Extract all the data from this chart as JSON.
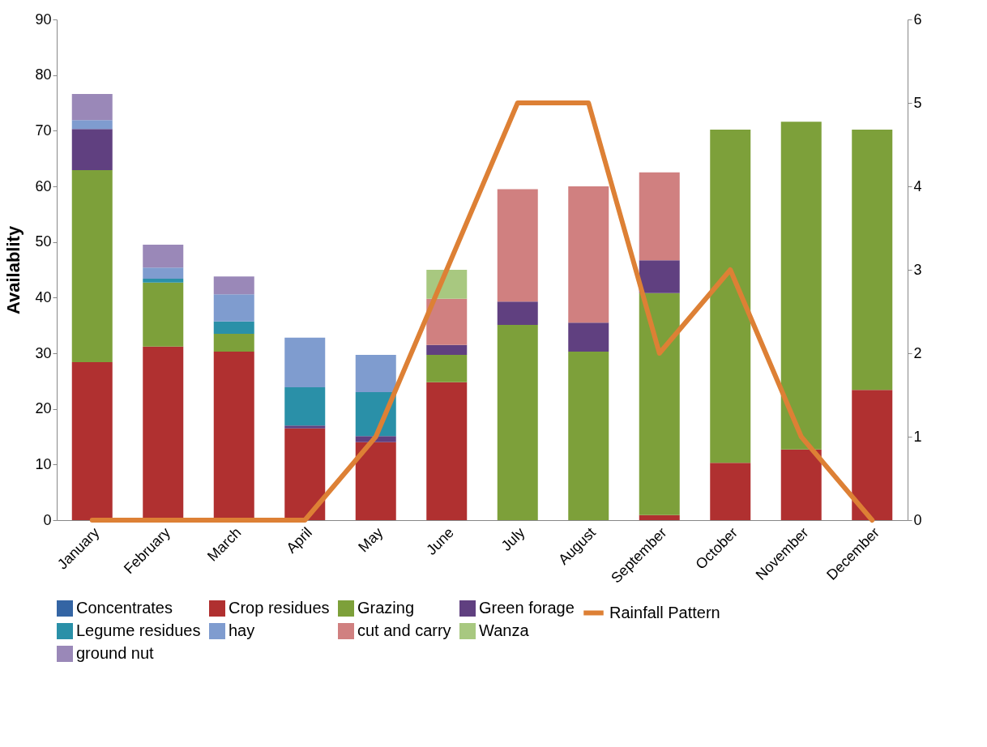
{
  "chart_data": {
    "type": "bar",
    "stacked": true,
    "ylabel": "Availablity",
    "categories": [
      "January",
      "February",
      "March",
      "April",
      "May",
      "June",
      "July",
      "August",
      "September",
      "October",
      "November",
      "December"
    ],
    "ylim": [
      0,
      90
    ],
    "yticks": [
      0,
      10,
      20,
      30,
      40,
      50,
      60,
      70,
      80,
      90
    ],
    "y2lim": [
      0,
      6
    ],
    "y2ticks": [
      0,
      1,
      2,
      3,
      4,
      5,
      6
    ],
    "legend": "bottom",
    "grid": false,
    "series": [
      {
        "name": "Concentrates",
        "color": "#3465a4",
        "values": [
          0,
          0,
          0,
          0,
          0,
          0,
          0,
          0,
          0,
          0,
          0,
          0
        ]
      },
      {
        "name": "Crop residues",
        "color": "#b03030",
        "values": [
          28.4,
          31.2,
          30.3,
          16.5,
          14,
          24.8,
          0,
          0,
          0.9,
          10.3,
          12.7,
          23.4
        ]
      },
      {
        "name": "Grazing",
        "color": "#7da03a",
        "values": [
          34.5,
          11.5,
          3.2,
          0,
          0,
          4.9,
          35.1,
          30.3,
          39.9,
          59.9,
          58.9,
          46.8
        ]
      },
      {
        "name": "Green forage",
        "color": "#604080",
        "values": [
          7.4,
          0,
          0,
          0.5,
          1.1,
          1.8,
          4.2,
          5.2,
          5.9,
          0,
          0,
          0
        ]
      },
      {
        "name": "Legume residues",
        "color": "#2a90a8",
        "values": [
          0,
          0.7,
          2.2,
          6.9,
          7.9,
          0,
          0,
          0,
          0,
          0,
          0,
          0
        ]
      },
      {
        "name": "hay",
        "color": "#7f9ccf",
        "values": [
          1.6,
          2,
          4.9,
          8.9,
          6.7,
          0,
          0,
          0,
          0,
          0,
          0,
          0
        ]
      },
      {
        "name": "cut and carry",
        "color": "#d08080",
        "values": [
          0,
          0,
          0,
          0,
          0,
          8.3,
          20.2,
          24.5,
          15.8,
          0,
          0,
          0
        ]
      },
      {
        "name": "Wanza",
        "color": "#a8c880",
        "values": [
          0,
          0,
          0,
          0,
          0,
          5.2,
          0,
          0,
          0,
          0,
          0,
          0
        ]
      },
      {
        "name": "ground nut",
        "color": "#9a88b8",
        "values": [
          4.7,
          4.1,
          3.2,
          0,
          0,
          0,
          0,
          0,
          0,
          0,
          0,
          0
        ]
      },
      {
        "name": "Rainfall Pattern",
        "color": "#dd8035",
        "type": "line",
        "axis": "y2",
        "values": [
          0,
          0,
          0,
          0,
          1,
          3,
          5,
          5,
          2,
          3,
          1,
          0
        ]
      }
    ]
  }
}
